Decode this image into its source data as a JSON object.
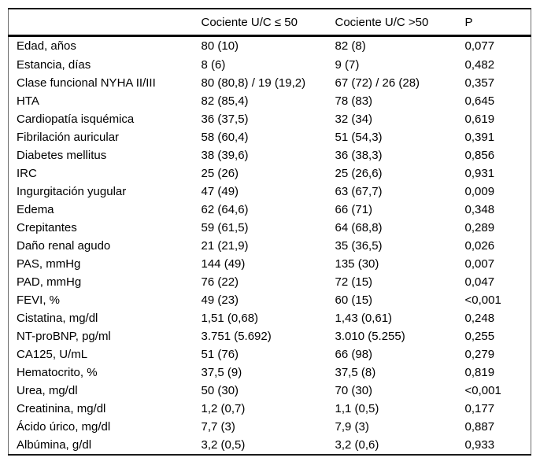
{
  "chart_data": {
    "type": "table",
    "columns": [
      "",
      "Cociente U/C ≤ 50",
      "Cociente U/C >50",
      "P"
    ],
    "rows": [
      [
        "Edad, años",
        "80 (10)",
        "82 (8)",
        "0,077"
      ],
      [
        "Estancia, días",
        "8 (6)",
        "9 (7)",
        "0,482"
      ],
      [
        "Clase funcional NYHA II/III",
        "80 (80,8) / 19 (19,2)",
        "67 (72) / 26 (28)",
        "0,357"
      ],
      [
        "HTA",
        "82 (85,4)",
        "78 (83)",
        "0,645"
      ],
      [
        "Cardiopatía isquémica",
        "36 (37,5)",
        "32 (34)",
        "0,619"
      ],
      [
        "Fibrilación auricular",
        "58 (60,4)",
        "51 (54,3)",
        "0,391"
      ],
      [
        "Diabetes mellitus",
        "38 (39,6)",
        "36 (38,3)",
        "0,856"
      ],
      [
        "IRC",
        "25 (26)",
        "25 (26,6)",
        "0,931"
      ],
      [
        "Ingurgitación yugular",
        "47 (49)",
        "63 (67,7)",
        "0,009"
      ],
      [
        "Edema",
        "62 (64,6)",
        "66 (71)",
        "0,348"
      ],
      [
        "Crepitantes",
        "59 (61,5)",
        "64 (68,8)",
        "0,289"
      ],
      [
        "Daño renal agudo",
        "21 (21,9)",
        "35 (36,5)",
        "0,026"
      ],
      [
        "PAS, mmHg",
        "144 (49)",
        "135 (30)",
        "0,007"
      ],
      [
        "PAD, mmHg",
        "76 (22)",
        "72 (15)",
        "0,047"
      ],
      [
        "FEVI, %",
        "49 (23)",
        "60 (15)",
        "<0,001"
      ],
      [
        "Cistatina, mg/dl",
        "1,51 (0,68)",
        "1,43 (0,61)",
        "0,248"
      ],
      [
        "NT-proBNP, pg/ml",
        "3.751 (5.692)",
        "3.010 (5.255)",
        "0,255"
      ],
      [
        "CA125, U/mL",
        "51 (76)",
        "66 (98)",
        "0,279"
      ],
      [
        "Hematocrito, %",
        "37,5 (9)",
        "37,5 (8)",
        "0,819"
      ],
      [
        "Urea, mg/dl",
        "50 (30)",
        "70 (30)",
        "<0,001"
      ],
      [
        "Creatinina, mg/dl",
        "1,2 (0,7)",
        "1,1 (0,5)",
        "0,177"
      ],
      [
        "Ácido úrico, mg/dl",
        "7,7 (3)",
        "7,9 (3)",
        "0,887"
      ],
      [
        "Albúmina, g/dl",
        "3,2 (0,5)",
        "3,2 (0,6)",
        "0,933"
      ]
    ],
    "layout": {
      "border_color_outer": "#6b6b6b",
      "border_color_rules": "#000000",
      "text_color": "#000000",
      "background": "#ffffff"
    }
  }
}
